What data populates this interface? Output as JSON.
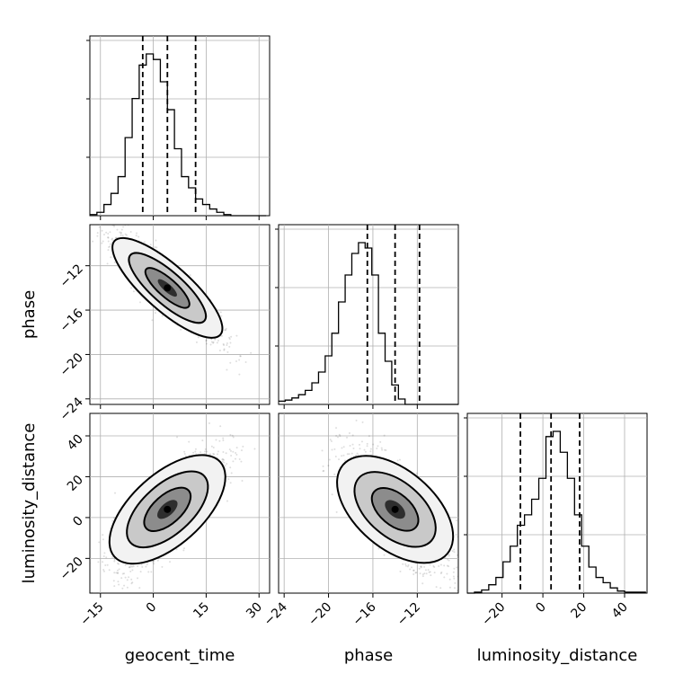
{
  "chart_data": {
    "type": "corner",
    "parameters": [
      "geocent_time",
      "phase",
      "luminosity_distance"
    ],
    "axis_labels": {
      "geocent_time": "geocent_time",
      "phase": "phase",
      "luminosity_distance": "luminosity_distance"
    },
    "ranges": {
      "geocent_time": [
        -18,
        33
      ],
      "phase": [
        -24.5,
        -8.3
      ],
      "luminosity_distance": [
        -37,
        51
      ]
    },
    "ticks": {
      "geocent_time": [
        -15,
        0,
        15,
        30
      ],
      "phase": [
        -24,
        -20,
        -16,
        -12
      ],
      "luminosity_distance": [
        -20,
        0,
        20,
        40
      ]
    },
    "tick_labels": {
      "geocent_time": [
        "−15",
        "0",
        "15",
        "30"
      ],
      "phase": [
        "−24",
        "−20",
        "−16",
        "−12"
      ],
      "luminosity_distance": [
        "−20",
        "0",
        "20",
        "40"
      ]
    },
    "subplot_tick_labels": {
      "phase_row_y": [
        "−12",
        "−16",
        "−20"
      ],
      "luminosity_row_y": [
        "40",
        "20",
        "0",
        "−20"
      ],
      "phase_col_x": [
        "−24",
        "−20",
        "−16",
        "−12"
      ]
    },
    "quantiles": {
      "geocent_time": [
        -3,
        4,
        12
      ],
      "phase": [
        -16.5,
        -14,
        -11.8
      ],
      "luminosity_distance": [
        -11,
        4,
        18
      ]
    },
    "hist_geocent_time": {
      "edges_start": -18,
      "bin_width": 2,
      "counts": [
        1,
        3,
        10,
        20,
        35,
        70,
        105,
        135,
        145,
        140,
        120,
        95,
        60,
        35,
        25,
        15,
        10,
        6,
        3,
        1,
        0,
        0,
        0,
        0,
        0
      ]
    },
    "hist_phase": {
      "edges_start": -24.5,
      "bin_width": 0.6,
      "counts": [
        3,
        4,
        6,
        9,
        13,
        20,
        30,
        45,
        66,
        95,
        120,
        140,
        150,
        145,
        120,
        66,
        40,
        18,
        5,
        0,
        0,
        0,
        0,
        0,
        0,
        0,
        0
      ]
    },
    "hist_luminosity_distance": {
      "edges_start": -37,
      "bin_width": 3.5,
      "counts": [
        0,
        1,
        3,
        8,
        15,
        30,
        45,
        65,
        75,
        90,
        110,
        150,
        155,
        135,
        110,
        75,
        45,
        25,
        15,
        10,
        5,
        2,
        1,
        1,
        1
      ]
    },
    "correlations": {
      "geocent_time_phase": -0.9,
      "geocent_time_luminosity_distance": 0.8,
      "phase_luminosity_distance": -0.75
    },
    "grid": true
  }
}
